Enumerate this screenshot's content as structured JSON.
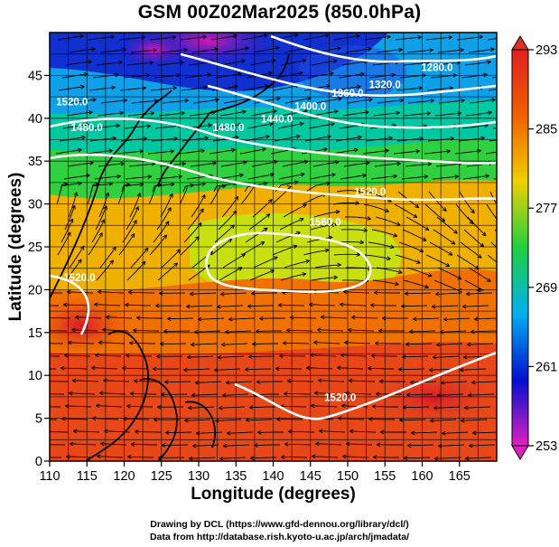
{
  "title": "GSM 00Z02Mar2025 (850.0hPa)",
  "credits": {
    "line1": "Drawing by DCL (https://www.gfd-dennou.org/library/dcl/)",
    "line2": "Data from http://database.rish.kyoto-u.ac.jp/arch/jmadata/"
  },
  "chart_data": {
    "type": "heatmap",
    "title": "GSM 00Z02Mar2025 (850.0hPa)",
    "xlabel": "Longitude (degrees)",
    "ylabel": "Latitude  (degrees)",
    "xlim": [
      110,
      170
    ],
    "ylim": [
      0,
      50
    ],
    "x_ticks": [
      "110",
      "115",
      "120",
      "125",
      "130",
      "135",
      "140",
      "145",
      "150",
      "155",
      "160",
      "165"
    ],
    "y_ticks": [
      "0",
      "5",
      "10",
      "15",
      "20",
      "25",
      "30",
      "35",
      "40",
      "45"
    ],
    "grid": true,
    "colorbar": {
      "range": [
        253,
        293
      ],
      "ticks": [
        "253",
        "261",
        "269",
        "277",
        "285",
        "293"
      ],
      "colors": [
        "#e020c0",
        "#0010d0",
        "#00b0f0",
        "#20d040",
        "#f0d000",
        "#f06000",
        "#e02020"
      ]
    },
    "contour_labels": [
      {
        "text": "1280.0",
        "lon": 162,
        "lat": 45.5
      },
      {
        "text": "1320.0",
        "lon": 155,
        "lat": 43.5
      },
      {
        "text": "1360.0",
        "lon": 150,
        "lat": 42.5
      },
      {
        "text": "1400.0",
        "lon": 145,
        "lat": 41
      },
      {
        "text": "1440.0",
        "lon": 140.5,
        "lat": 39.5
      },
      {
        "text": "1480.0",
        "lon": 134,
        "lat": 38.5
      },
      {
        "text": "1520.0",
        "lon": 113,
        "lat": 41.5
      },
      {
        "text": "1480.0",
        "lon": 115,
        "lat": 38.5
      },
      {
        "text": "1520.0",
        "lon": 153,
        "lat": 31
      },
      {
        "text": "1560.0",
        "lon": 147,
        "lat": 27.5
      },
      {
        "text": "1520.0",
        "lon": 114,
        "lat": 21
      },
      {
        "text": "1520.0",
        "lon": 149,
        "lat": 7
      }
    ]
  }
}
